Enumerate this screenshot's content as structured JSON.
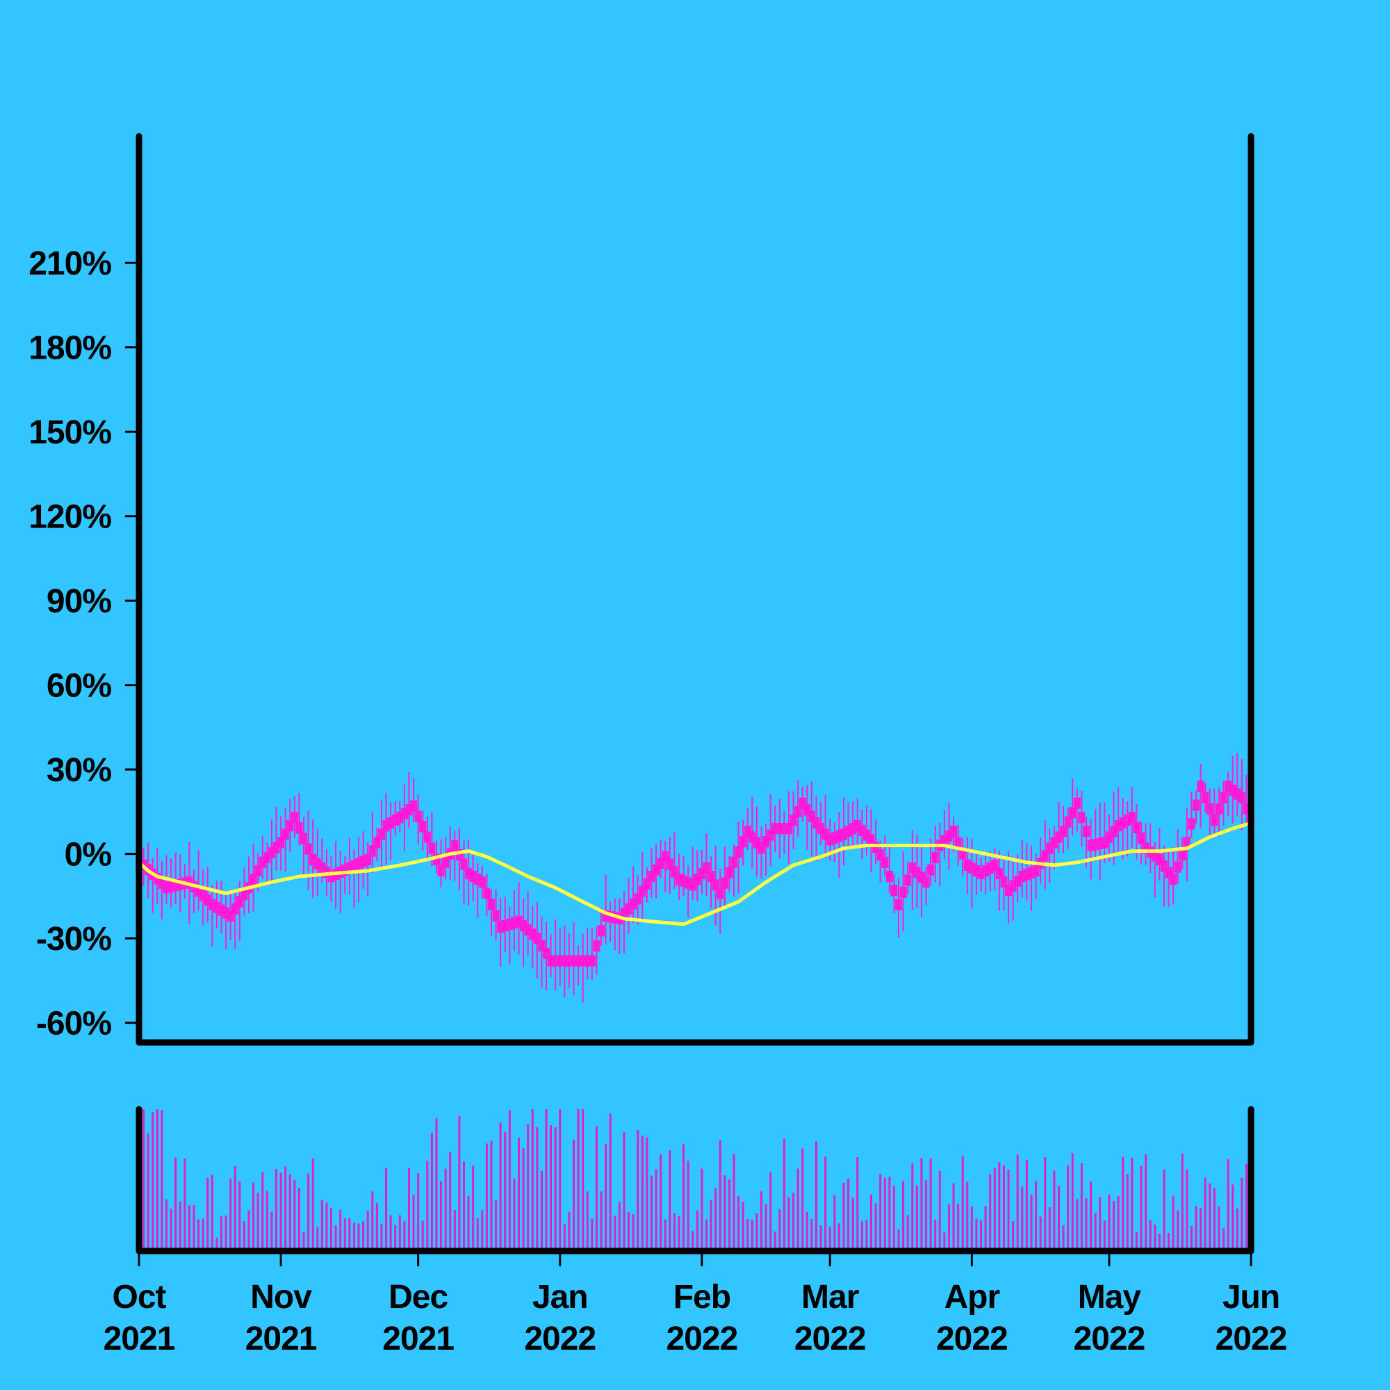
{
  "chart_data": {
    "type": "line",
    "title": "",
    "xlabel": "",
    "ylabel": "",
    "ylim": [
      -0.67,
      2.55
    ],
    "y_ticks": [
      {
        "value": -0.6,
        "label": "-60%"
      },
      {
        "value": -0.3,
        "label": "-30%"
      },
      {
        "value": 0.0,
        "label": "0%"
      },
      {
        "value": 0.3,
        "label": "30%"
      },
      {
        "value": 0.6,
        "label": "60%"
      },
      {
        "value": 0.9,
        "label": "90%"
      },
      {
        "value": 1.2,
        "label": "120%"
      },
      {
        "value": 1.5,
        "label": "150%"
      },
      {
        "value": 1.8,
        "label": "180%"
      },
      {
        "value": 2.1,
        "label": "210%"
      }
    ],
    "x_range": [
      "2021-10-01",
      "2022-06-01"
    ],
    "x_ticks": [
      {
        "date": "2021-10-01",
        "month": "Oct",
        "year": "2021"
      },
      {
        "date": "2021-11-01",
        "month": "Nov",
        "year": "2021"
      },
      {
        "date": "2021-12-01",
        "month": "Dec",
        "year": "2021"
      },
      {
        "date": "2022-01-01",
        "month": "Jan",
        "year": "2022"
      },
      {
        "date": "2022-02-01",
        "month": "Feb",
        "year": "2022"
      },
      {
        "date": "2022-03-01",
        "month": "Mar",
        "year": "2022"
      },
      {
        "date": "2022-04-01",
        "month": "Apr",
        "year": "2022"
      },
      {
        "date": "2022-05-01",
        "month": "May",
        "year": "2022"
      },
      {
        "date": "2022-06-01",
        "month": "Jun",
        "year": "2022"
      }
    ],
    "grid": false,
    "legend": "none",
    "series": [
      {
        "kind": "daily_range_bars",
        "color": "#ff19d9",
        "points": [
          {
            "date": "2021-10-02",
            "value": -0.04
          },
          {
            "date": "2021-10-07",
            "value": -0.12
          },
          {
            "date": "2021-10-12",
            "value": -0.1
          },
          {
            "date": "2021-10-17",
            "value": -0.18
          },
          {
            "date": "2021-10-21",
            "value": -0.22
          },
          {
            "date": "2021-10-25",
            "value": -0.12
          },
          {
            "date": "2021-10-28",
            "value": -0.03
          },
          {
            "date": "2021-11-01",
            "value": 0.04
          },
          {
            "date": "2021-11-04",
            "value": 0.13
          },
          {
            "date": "2021-11-08",
            "value": -0.02
          },
          {
            "date": "2021-11-12",
            "value": -0.08
          },
          {
            "date": "2021-11-16",
            "value": -0.05
          },
          {
            "date": "2021-11-20",
            "value": -0.02
          },
          {
            "date": "2021-11-24",
            "value": 0.1
          },
          {
            "date": "2021-11-27",
            "value": 0.13
          },
          {
            "date": "2021-11-30",
            "value": 0.17
          },
          {
            "date": "2021-12-03",
            "value": 0.06
          },
          {
            "date": "2021-12-06",
            "value": -0.06
          },
          {
            "date": "2021-12-09",
            "value": 0.03
          },
          {
            "date": "2021-12-12",
            "value": -0.07
          },
          {
            "date": "2021-12-15",
            "value": -0.1
          },
          {
            "date": "2021-12-19",
            "value": -0.26
          },
          {
            "date": "2021-12-23",
            "value": -0.24
          },
          {
            "date": "2021-12-27",
            "value": -0.3
          },
          {
            "date": "2021-12-30",
            "value": -0.38
          },
          {
            "date": "2022-01-04",
            "value": -0.38
          },
          {
            "date": "2022-01-08",
            "value": -0.38
          },
          {
            "date": "2022-01-11",
            "value": -0.22
          },
          {
            "date": "2022-01-14",
            "value": -0.23
          },
          {
            "date": "2022-01-18",
            "value": -0.16
          },
          {
            "date": "2022-01-21",
            "value": -0.08
          },
          {
            "date": "2022-01-24",
            "value": -0.01
          },
          {
            "date": "2022-01-27",
            "value": -0.09
          },
          {
            "date": "2022-01-30",
            "value": -0.11
          },
          {
            "date": "2022-02-02",
            "value": -0.05
          },
          {
            "date": "2022-02-05",
            "value": -0.14
          },
          {
            "date": "2022-02-08",
            "value": -0.03
          },
          {
            "date": "2022-02-11",
            "value": 0.08
          },
          {
            "date": "2022-02-14",
            "value": 0.02
          },
          {
            "date": "2022-02-17",
            "value": 0.09
          },
          {
            "date": "2022-02-20",
            "value": 0.09
          },
          {
            "date": "2022-02-23",
            "value": 0.18
          },
          {
            "date": "2022-02-26",
            "value": 0.11
          },
          {
            "date": "2022-03-01",
            "value": 0.05
          },
          {
            "date": "2022-03-04",
            "value": 0.07
          },
          {
            "date": "2022-03-07",
            "value": 0.1
          },
          {
            "date": "2022-03-10",
            "value": 0.05
          },
          {
            "date": "2022-03-13",
            "value": -0.03
          },
          {
            "date": "2022-03-16",
            "value": -0.18
          },
          {
            "date": "2022-03-19",
            "value": -0.05
          },
          {
            "date": "2022-03-22",
            "value": -0.1
          },
          {
            "date": "2022-03-25",
            "value": 0.03
          },
          {
            "date": "2022-03-28",
            "value": 0.08
          },
          {
            "date": "2022-03-31",
            "value": -0.04
          },
          {
            "date": "2022-04-03",
            "value": -0.07
          },
          {
            "date": "2022-04-06",
            "value": -0.04
          },
          {
            "date": "2022-04-09",
            "value": -0.13
          },
          {
            "date": "2022-04-12",
            "value": -0.08
          },
          {
            "date": "2022-04-15",
            "value": -0.06
          },
          {
            "date": "2022-04-18",
            "value": 0.02
          },
          {
            "date": "2022-04-21",
            "value": 0.08
          },
          {
            "date": "2022-04-24",
            "value": 0.18
          },
          {
            "date": "2022-04-27",
            "value": 0.03
          },
          {
            "date": "2022-04-30",
            "value": 0.04
          },
          {
            "date": "2022-05-03",
            "value": 0.1
          },
          {
            "date": "2022-05-06",
            "value": 0.13
          },
          {
            "date": "2022-05-09",
            "value": 0.02
          },
          {
            "date": "2022-05-12",
            "value": -0.02
          },
          {
            "date": "2022-05-15",
            "value": -0.09
          },
          {
            "date": "2022-05-18",
            "value": 0.04
          },
          {
            "date": "2022-05-21",
            "value": 0.24
          },
          {
            "date": "2022-05-24",
            "value": 0.12
          },
          {
            "date": "2022-05-27",
            "value": 0.24
          },
          {
            "date": "2022-05-30",
            "value": 0.2
          },
          {
            "date": "2022-06-01",
            "value": 0.12
          }
        ]
      },
      {
        "kind": "moving_average",
        "color": "#ffff44",
        "points": [
          {
            "date": "2021-10-01",
            "value": -0.03
          },
          {
            "date": "2021-10-03",
            "value": -0.06
          },
          {
            "date": "2021-10-05",
            "value": -0.08
          },
          {
            "date": "2021-10-10",
            "value": -0.1
          },
          {
            "date": "2021-10-15",
            "value": -0.12
          },
          {
            "date": "2021-10-20",
            "value": -0.14
          },
          {
            "date": "2021-10-25",
            "value": -0.12
          },
          {
            "date": "2021-10-30",
            "value": -0.1
          },
          {
            "date": "2021-11-05",
            "value": -0.08
          },
          {
            "date": "2021-11-12",
            "value": -0.07
          },
          {
            "date": "2021-11-20",
            "value": -0.06
          },
          {
            "date": "2021-11-27",
            "value": -0.04
          },
          {
            "date": "2021-12-03",
            "value": -0.02
          },
          {
            "date": "2021-12-08",
            "value": 0.0
          },
          {
            "date": "2021-12-12",
            "value": 0.01
          },
          {
            "date": "2021-12-16",
            "value": -0.01
          },
          {
            "date": "2021-12-20",
            "value": -0.04
          },
          {
            "date": "2021-12-25",
            "value": -0.08
          },
          {
            "date": "2021-12-31",
            "value": -0.12
          },
          {
            "date": "2022-01-06",
            "value": -0.17
          },
          {
            "date": "2022-01-11",
            "value": -0.21
          },
          {
            "date": "2022-01-15",
            "value": -0.23
          },
          {
            "date": "2022-01-21",
            "value": -0.24
          },
          {
            "date": "2022-01-28",
            "value": -0.25
          },
          {
            "date": "2022-02-03",
            "value": -0.21
          },
          {
            "date": "2022-02-09",
            "value": -0.17
          },
          {
            "date": "2022-02-15",
            "value": -0.1
          },
          {
            "date": "2022-02-21",
            "value": -0.04
          },
          {
            "date": "2022-02-27",
            "value": -0.01
          },
          {
            "date": "2022-03-04",
            "value": 0.02
          },
          {
            "date": "2022-03-09",
            "value": 0.03
          },
          {
            "date": "2022-03-15",
            "value": 0.03
          },
          {
            "date": "2022-03-20",
            "value": 0.03
          },
          {
            "date": "2022-03-26",
            "value": 0.03
          },
          {
            "date": "2022-04-01",
            "value": 0.01
          },
          {
            "date": "2022-04-07",
            "value": -0.01
          },
          {
            "date": "2022-04-13",
            "value": -0.03
          },
          {
            "date": "2022-04-19",
            "value": -0.04
          },
          {
            "date": "2022-04-24",
            "value": -0.03
          },
          {
            "date": "2022-04-30",
            "value": -0.01
          },
          {
            "date": "2022-05-06",
            "value": 0.01
          },
          {
            "date": "2022-05-12",
            "value": 0.01
          },
          {
            "date": "2022-05-18",
            "value": 0.02
          },
          {
            "date": "2022-05-23",
            "value": 0.06
          },
          {
            "date": "2022-05-28",
            "value": 0.09
          },
          {
            "date": "2022-06-01",
            "value": 0.11
          }
        ]
      }
    ],
    "volume_panel": {
      "color": "#e020c8",
      "note_type": "bar",
      "profile": [
        {
          "date": "2021-10-01",
          "level": 0.9
        },
        {
          "date": "2021-10-15",
          "level": 0.35
        },
        {
          "date": "2021-11-01",
          "level": 0.45
        },
        {
          "date": "2021-11-15",
          "level": 0.4
        },
        {
          "date": "2021-12-01",
          "level": 0.6
        },
        {
          "date": "2021-12-15",
          "level": 0.7
        },
        {
          "date": "2022-01-01",
          "level": 0.75
        },
        {
          "date": "2022-01-15",
          "level": 0.65
        },
        {
          "date": "2022-02-01",
          "level": 0.55
        },
        {
          "date": "2022-02-15",
          "level": 0.55
        },
        {
          "date": "2022-03-01",
          "level": 0.5
        },
        {
          "date": "2022-03-15",
          "level": 0.4
        },
        {
          "date": "2022-04-01",
          "level": 0.5
        },
        {
          "date": "2022-04-15",
          "level": 0.5
        },
        {
          "date": "2022-05-01",
          "level": 0.45
        },
        {
          "date": "2022-05-15",
          "level": 0.45
        },
        {
          "date": "2022-06-01",
          "level": 0.55
        }
      ]
    }
  }
}
